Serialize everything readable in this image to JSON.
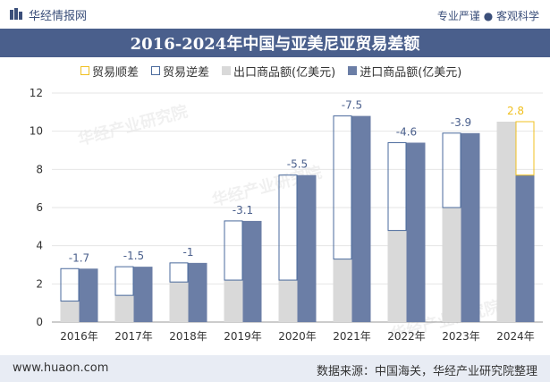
{
  "header": {
    "brand": "华经情报网",
    "tagline": "专业严谨 ● 客观科学",
    "title": "2016-2024年中国与亚美尼亚贸易差额"
  },
  "footer": {
    "url": "www.huaon.com",
    "source": "数据来源：中国海关，华经产业研究院整理"
  },
  "watermark": "华经产业研究院",
  "chart_data": {
    "type": "bar",
    "categories": [
      "2016年",
      "2017年",
      "2018年",
      "2019年",
      "2020年",
      "2021年",
      "2022年",
      "2023年",
      "2024年"
    ],
    "series": [
      {
        "name": "出口商品额(亿美元)",
        "values": [
          1.1,
          1.4,
          2.1,
          2.2,
          2.2,
          3.3,
          4.8,
          6.0,
          10.5
        ]
      },
      {
        "name": "进口商品额(亿美元)",
        "values": [
          2.8,
          2.9,
          3.1,
          5.3,
          7.7,
          10.8,
          9.4,
          9.9,
          7.7
        ]
      }
    ],
    "balance": {
      "surplus_name": "贸易顺差",
      "deficit_name": "贸易逆差",
      "labels": [
        "-1.7",
        "-1.5",
        "-1",
        "-3.1",
        "-5.5",
        "-7.5",
        "-4.6",
        "-3.9",
        "2.8"
      ],
      "values": [
        -1.7,
        -1.5,
        -1,
        -3.1,
        -5.5,
        -7.5,
        -4.6,
        -3.9,
        2.8
      ]
    },
    "yticks": [
      "0",
      "2",
      "4",
      "6",
      "8",
      "10",
      "12"
    ],
    "ylim": [
      0,
      12
    ],
    "colors": {
      "export": "#d9d9d9",
      "import": "#6b7ea6",
      "deficit_border": "#4a6a9c",
      "surplus_border": "#f0c020",
      "deficit_label": "#4a5f8c",
      "surplus_label": "#f0c020"
    },
    "legend_position": "top"
  }
}
